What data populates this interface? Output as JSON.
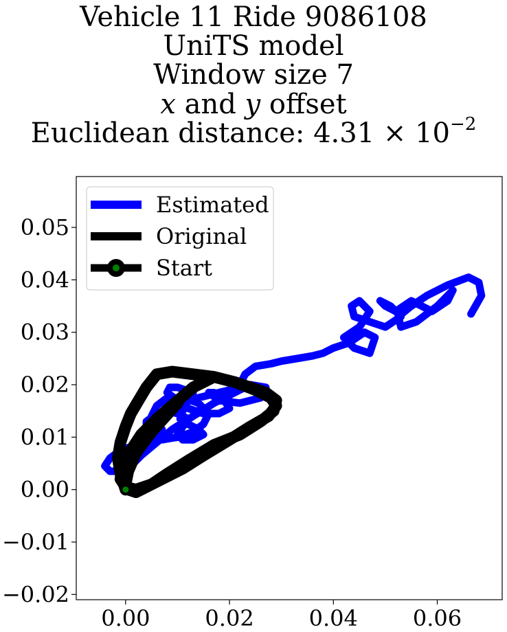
{
  "title": {
    "line1": "Vehicle 11 Ride 9086108",
    "line2": "UniTS model",
    "line3": "Window size 7",
    "line4_x": "x",
    "line4_mid": " and ",
    "line4_y": "y",
    "line4_end": " offset",
    "line5_prefix": "Euclidean distance: 4.31 × 10",
    "line5_exp": "−2"
  },
  "chart_data": {
    "type": "line",
    "title": "Vehicle 11 Ride 9086108 UniTS model Window size 7 x and y offset Euclidean distance: 4.31×10^-2",
    "xlabel": "",
    "ylabel": "",
    "xlim": [
      -0.0095,
      0.0725
    ],
    "ylim": [
      -0.021,
      0.0597
    ],
    "xticks": [
      0.0,
      0.02,
      0.04,
      0.06
    ],
    "xtick_labels": [
      "0.00",
      "0.02",
      "0.04",
      "0.06"
    ],
    "yticks": [
      -0.02,
      -0.01,
      0.0,
      0.01,
      0.02,
      0.03,
      0.04,
      0.05
    ],
    "ytick_labels": [
      "−0.02",
      "−0.01",
      "0.00",
      "0.01",
      "0.02",
      "0.03",
      "0.04",
      "0.05"
    ],
    "grid": false,
    "legend_position": "top-left",
    "series": [
      {
        "name": "Estimated",
        "color": "#0000ff",
        "x": [
          0.0665,
          0.0685,
          0.068,
          0.066,
          0.062,
          0.058,
          0.055,
          0.0525,
          0.053,
          0.056,
          0.06,
          0.063,
          0.062,
          0.059,
          0.055,
          0.052,
          0.05,
          0.049,
          0.051,
          0.053,
          0.05,
          0.047,
          0.044,
          0.0435,
          0.045,
          0.047,
          0.045,
          0.042,
          0.044,
          0.047,
          0.048,
          0.046,
          0.043,
          0.04,
          0.038,
          0.036,
          0.033,
          0.03,
          0.028,
          0.025,
          0.023,
          0.022,
          0.02,
          0.018,
          0.016,
          0.014,
          0.012,
          0.011,
          0.0105,
          0.012,
          0.014,
          0.015,
          0.013,
          0.011,
          0.01,
          0.011,
          0.012,
          0.01,
          0.008,
          0.006,
          0.004,
          0.004,
          0.005,
          0.007,
          0.01,
          0.013,
          0.015,
          0.016,
          0.014,
          0.011,
          0.008,
          0.006,
          0.005,
          0.006,
          0.007,
          0.005,
          0.002,
          -0.001,
          -0.003,
          -0.004,
          -0.003,
          -0.001,
          0.001,
          0.003,
          0.006,
          0.009,
          0.013,
          0.017,
          0.021,
          0.024,
          0.027,
          0.026,
          0.022,
          0.018,
          0.016,
          0.017,
          0.019,
          0.02,
          0.018,
          0.015,
          0.012,
          0.01,
          0.008,
          0.0085,
          0.01,
          0.0115,
          0.013
        ],
        "y": [
          0.0335,
          0.037,
          0.0395,
          0.0405,
          0.039,
          0.037,
          0.035,
          0.033,
          0.031,
          0.032,
          0.035,
          0.038,
          0.036,
          0.034,
          0.036,
          0.034,
          0.035,
          0.036,
          0.035,
          0.033,
          0.031,
          0.032,
          0.033,
          0.035,
          0.036,
          0.034,
          0.031,
          0.029,
          0.027,
          0.026,
          0.029,
          0.03,
          0.028,
          0.027,
          0.026,
          0.0255,
          0.025,
          0.0245,
          0.024,
          0.0235,
          0.022,
          0.02,
          0.019,
          0.0185,
          0.018,
          0.0175,
          0.017,
          0.015,
          0.0135,
          0.0125,
          0.0115,
          0.0105,
          0.0095,
          0.0095,
          0.0105,
          0.012,
          0.0135,
          0.0145,
          0.015,
          0.0145,
          0.013,
          0.011,
          0.01,
          0.0095,
          0.01,
          0.011,
          0.0125,
          0.0145,
          0.0165,
          0.0175,
          0.0175,
          0.016,
          0.014,
          0.0125,
          0.0115,
          0.0095,
          0.0085,
          0.0075,
          0.006,
          0.0045,
          0.0035,
          0.0035,
          0.0045,
          0.0065,
          0.009,
          0.0115,
          0.014,
          0.0165,
          0.0185,
          0.02,
          0.0195,
          0.0175,
          0.0165,
          0.017,
          0.0185,
          0.0185,
          0.017,
          0.0155,
          0.0145,
          0.0145,
          0.0155,
          0.017,
          0.0185,
          0.0195,
          0.0195,
          0.019,
          0.0185
        ]
      },
      {
        "name": "Original",
        "color": "#000000",
        "x": [
          0.0,
          -0.001,
          -0.0015,
          -0.001,
          0.0,
          0.001,
          0.0025,
          0.004,
          0.006,
          0.009,
          0.013,
          0.017,
          0.021,
          0.024,
          0.027,
          0.029,
          0.0285,
          0.026,
          0.022,
          0.017,
          0.012,
          0.008,
          0.005,
          0.002,
          0.0,
          -0.001,
          -0.0005,
          0.001,
          0.003,
          0.006,
          0.0095,
          0.013,
          0.017,
          0.021,
          0.025,
          0.028,
          0.029,
          0.0275,
          0.024,
          0.02,
          0.015,
          0.011,
          0.007,
          0.004,
          0.002,
          0.0005,
          0.0,
          0.0005,
          0.002,
          0.005,
          0.01
        ],
        "y": [
          0.0,
          0.003,
          0.006,
          0.009,
          0.012,
          0.0145,
          0.017,
          0.0195,
          0.022,
          0.0225,
          0.022,
          0.0215,
          0.0205,
          0.0195,
          0.0185,
          0.017,
          0.015,
          0.013,
          0.0105,
          0.0085,
          0.0055,
          0.003,
          0.001,
          0.0,
          0.0005,
          0.002,
          0.0045,
          0.0075,
          0.0105,
          0.0135,
          0.0165,
          0.0195,
          0.0215,
          0.0205,
          0.019,
          0.0175,
          0.016,
          0.014,
          0.012,
          0.0095,
          0.0065,
          0.004,
          0.002,
          0.0005,
          -0.0005,
          0.0,
          0.001,
          0.0035,
          0.007,
          0.011,
          0.0165
        ]
      },
      {
        "name": "Start",
        "type": "scatter",
        "color": "#008000",
        "edgecolor": "#000000",
        "x": [
          0.0
        ],
        "y": [
          0.0
        ]
      }
    ]
  }
}
